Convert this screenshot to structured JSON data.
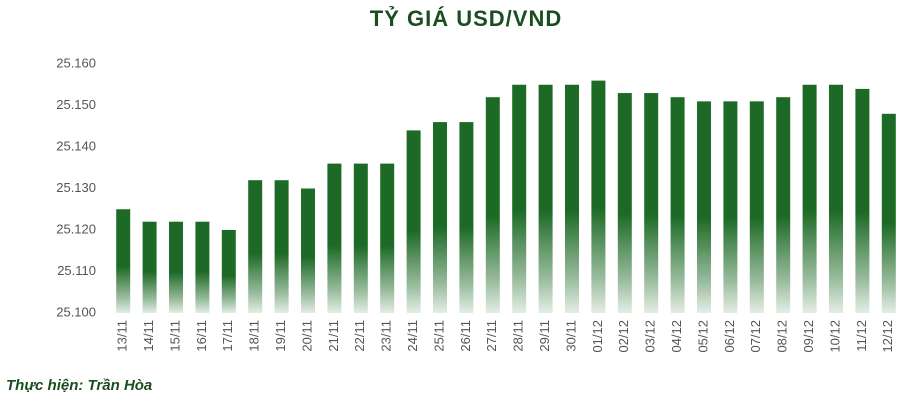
{
  "chart_data": {
    "type": "bar",
    "title": "TỶ GIÁ USD/VND",
    "categories": [
      "13/11",
      "14/11",
      "15/11",
      "16/11",
      "17/11",
      "18/11",
      "19/11",
      "20/11",
      "21/11",
      "22/11",
      "23/11",
      "24/11",
      "25/11",
      "26/11",
      "27/11",
      "28/11",
      "29/11",
      "30/11",
      "01/12",
      "02/12",
      "03/12",
      "04/12",
      "05/12",
      "06/12",
      "07/12",
      "08/12",
      "09/12",
      "10/12",
      "11/12",
      "12/12"
    ],
    "values": [
      25125,
      25122,
      25122,
      25122,
      25120,
      25132,
      25132,
      25130,
      25136,
      25136,
      25136,
      25144,
      25146,
      25146,
      25152,
      25155,
      25155,
      25155,
      25156,
      25153,
      25153,
      25152,
      25151,
      25151,
      25151,
      25152,
      25155,
      25155,
      25154,
      25148
    ],
    "color": "#1d6a26",
    "ylim": [
      25100,
      25160
    ],
    "yticks": [
      {
        "value": 25100,
        "label": "25.100"
      },
      {
        "value": 25110,
        "label": "25.110"
      },
      {
        "value": 25120,
        "label": "25.120"
      },
      {
        "value": 25130,
        "label": "25.130"
      },
      {
        "value": 25140,
        "label": "25.140"
      },
      {
        "value": 25150,
        "label": "25.150"
      },
      {
        "value": 25160,
        "label": "25.160"
      }
    ],
    "grid": false,
    "source": "Thực hiện: Trần Hòa"
  }
}
